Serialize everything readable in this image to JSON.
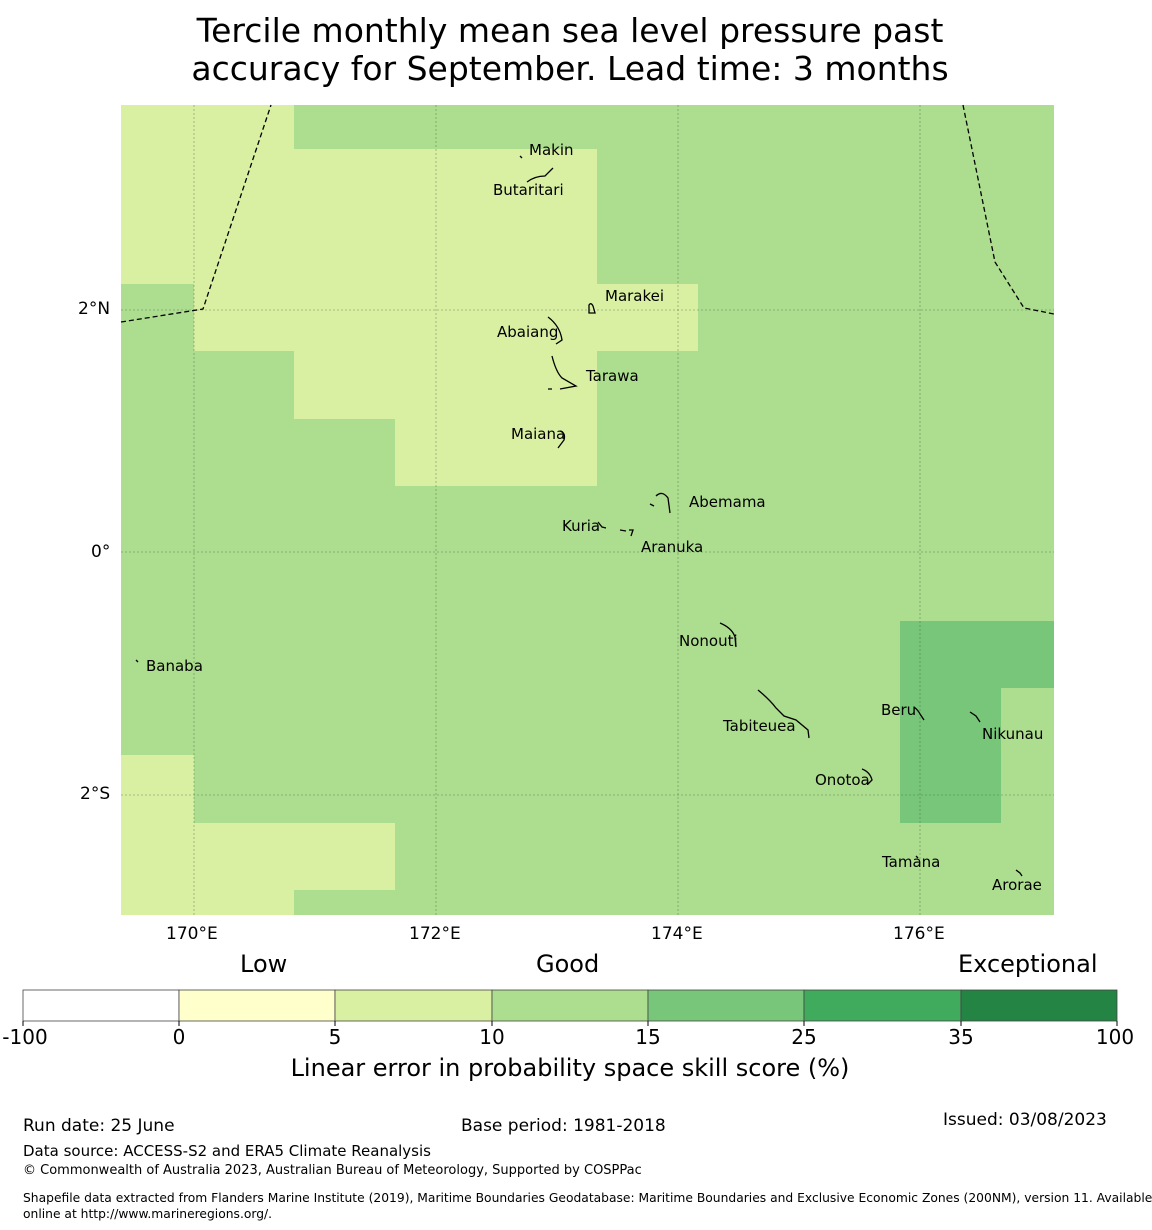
{
  "title": {
    "line1": "Tercile monthly mean sea level pressure past",
    "line2": "accuracy for September. Lead time: 3 months"
  },
  "map": {
    "lat_ticks": [
      "2°N",
      "0°",
      "2°S"
    ],
    "lon_ticks": [
      "170°E",
      "172°E",
      "174°E",
      "176°E"
    ],
    "islands": [
      "Makin",
      "Butaritari",
      "Marakei",
      "Abaiang",
      "Tarawa",
      "Maiana",
      "Abemama",
      "Kuria",
      "Aranuka",
      "Nonouti",
      "Banaba",
      "Beru",
      "Tabiteuea",
      "Nikunau",
      "Onotoa",
      "Tamana",
      "Arorae"
    ]
  },
  "colorbar": {
    "category_labels": [
      "Low",
      "Good",
      "Exceptional"
    ],
    "ticks": [
      "-100",
      "0",
      "5",
      "10",
      "15",
      "25",
      "35",
      "100"
    ],
    "colors": [
      "#ffffff",
      "#ffffcc",
      "#d9f0a3",
      "#addd8e",
      "#78c679",
      "#41ab5d",
      "#238443"
    ],
    "title": "Linear error in probability space skill score (%)"
  },
  "footer": {
    "run_date": "Run date: 25 June",
    "base_period": "Base period: 1981-2018",
    "issued": "Issued: 03/08/2023",
    "data_source": "Data source: ACCESS-S2 and ERA5 Climate Reanalysis",
    "copyright": "© Commonwealth of Australia 2023, Australian Bureau of Meteorology, Supported by COSPPac",
    "shapefile_line1": "Shapefile data extracted from Flanders Marine Institute (2019), Maritime Boundaries Geodatabase: Maritime Boundaries and Exclusive Economic Zones (200NM), version 11. Available",
    "shapefile_line2": "online at http://www.marineregions.org/."
  }
}
